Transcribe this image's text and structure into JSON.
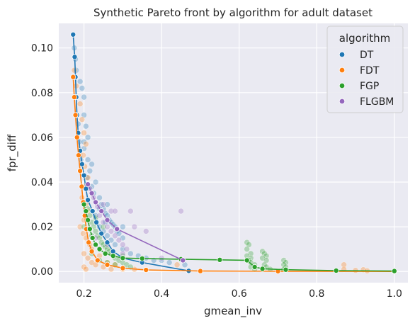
{
  "chart_data": {
    "type": "scatter",
    "title": "Synthetic Pareto front by algorithm for adult dataset",
    "xlabel": "gmean_inv",
    "ylabel": "fpr_diff",
    "xlim": [
      0.135,
      1.035
    ],
    "ylim": [
      -0.005,
      0.111
    ],
    "x_ticks": [
      0.2,
      0.4,
      0.6,
      0.8,
      1.0
    ],
    "x_tick_labels": [
      "0.2",
      "0.4",
      "0.6",
      "0.8",
      "1.0"
    ],
    "y_ticks": [
      0.0,
      0.02,
      0.04,
      0.06,
      0.08,
      0.1
    ],
    "y_tick_labels": [
      "0.00",
      "0.02",
      "0.04",
      "0.06",
      "0.08",
      "0.10"
    ],
    "grid": true,
    "background": "#eaeaf2",
    "legend": {
      "title": "algorithm",
      "placement": "top-right",
      "entries": [
        "DT",
        "FDT",
        "FGP",
        "FLGBM"
      ]
    },
    "series": [
      {
        "name": "DT",
        "color": "#1f77b4",
        "front": [
          [
            0.172,
            0.106
          ],
          [
            0.176,
            0.096
          ],
          [
            0.178,
            0.087
          ],
          [
            0.18,
            0.078
          ],
          [
            0.182,
            0.07
          ],
          [
            0.185,
            0.062
          ],
          [
            0.19,
            0.054
          ],
          [
            0.195,
            0.048
          ],
          [
            0.2,
            0.043
          ],
          [
            0.205,
            0.037
          ],
          [
            0.21,
            0.032
          ],
          [
            0.222,
            0.027
          ],
          [
            0.232,
            0.022
          ],
          [
            0.245,
            0.017
          ],
          [
            0.26,
            0.013
          ],
          [
            0.275,
            0.009
          ],
          [
            0.3,
            0.006
          ],
          [
            0.35,
            0.004
          ],
          [
            0.47,
            0.0003
          ]
        ],
        "cloud": [
          [
            0.175,
            0.1
          ],
          [
            0.178,
            0.095
          ],
          [
            0.18,
            0.09
          ],
          [
            0.19,
            0.085
          ],
          [
            0.195,
            0.082
          ],
          [
            0.2,
            0.078
          ],
          [
            0.2,
            0.07
          ],
          [
            0.205,
            0.065
          ],
          [
            0.21,
            0.06
          ],
          [
            0.2,
            0.055
          ],
          [
            0.21,
            0.05
          ],
          [
            0.22,
            0.048
          ],
          [
            0.215,
            0.045
          ],
          [
            0.23,
            0.04
          ],
          [
            0.225,
            0.035
          ],
          [
            0.24,
            0.033
          ],
          [
            0.245,
            0.03
          ],
          [
            0.25,
            0.028
          ],
          [
            0.255,
            0.026
          ],
          [
            0.26,
            0.025
          ],
          [
            0.265,
            0.023
          ],
          [
            0.27,
            0.022
          ],
          [
            0.275,
            0.021
          ],
          [
            0.28,
            0.02
          ],
          [
            0.285,
            0.018
          ],
          [
            0.29,
            0.017
          ],
          [
            0.3,
            0.015
          ],
          [
            0.23,
            0.025
          ],
          [
            0.24,
            0.02
          ],
          [
            0.25,
            0.018
          ],
          [
            0.26,
            0.016
          ],
          [
            0.27,
            0.014
          ],
          [
            0.28,
            0.012
          ],
          [
            0.3,
            0.01
          ],
          [
            0.32,
            0.008
          ],
          [
            0.34,
            0.007
          ],
          [
            0.36,
            0.006
          ],
          [
            0.38,
            0.005
          ],
          [
            0.4,
            0.005
          ],
          [
            0.42,
            0.004
          ],
          [
            0.3,
            0.02
          ],
          [
            0.26,
            0.03
          ],
          [
            0.22,
            0.038
          ],
          [
            0.185,
            0.066
          ],
          [
            0.188,
            0.058
          ],
          [
            0.192,
            0.05
          ],
          [
            0.2,
            0.058
          ],
          [
            0.208,
            0.042
          ],
          [
            0.24,
            0.028
          ],
          [
            0.255,
            0.022
          ],
          [
            0.35,
            0.005
          ],
          [
            0.46,
            0.003
          ]
        ]
      },
      {
        "name": "FDT",
        "color": "#ff7f0e",
        "front": [
          [
            0.172,
            0.087
          ],
          [
            0.175,
            0.078
          ],
          [
            0.178,
            0.07
          ],
          [
            0.182,
            0.06
          ],
          [
            0.186,
            0.052
          ],
          [
            0.19,
            0.045
          ],
          [
            0.194,
            0.038
          ],
          [
            0.198,
            0.031
          ],
          [
            0.202,
            0.025
          ],
          [
            0.206,
            0.019
          ],
          [
            0.212,
            0.013
          ],
          [
            0.22,
            0.009
          ],
          [
            0.235,
            0.005
          ],
          [
            0.26,
            0.003
          ],
          [
            0.3,
            0.0015
          ],
          [
            0.36,
            0.0007
          ],
          [
            0.5,
            0.0002
          ],
          [
            0.7,
            0.0001
          ],
          [
            1.0,
            0.0
          ]
        ],
        "cloud": [
          [
            0.175,
            0.09
          ],
          [
            0.18,
            0.083
          ],
          [
            0.19,
            0.075
          ],
          [
            0.195,
            0.068
          ],
          [
            0.2,
            0.062
          ],
          [
            0.205,
            0.057
          ],
          [
            0.198,
            0.052
          ],
          [
            0.202,
            0.047
          ],
          [
            0.21,
            0.042
          ],
          [
            0.2,
            0.038
          ],
          [
            0.195,
            0.033
          ],
          [
            0.205,
            0.03
          ],
          [
            0.21,
            0.027
          ],
          [
            0.2,
            0.023
          ],
          [
            0.19,
            0.02
          ],
          [
            0.198,
            0.017
          ],
          [
            0.205,
            0.015
          ],
          [
            0.215,
            0.012
          ],
          [
            0.22,
            0.01
          ],
          [
            0.2,
            0.008
          ],
          [
            0.21,
            0.006
          ],
          [
            0.22,
            0.004
          ],
          [
            0.23,
            0.003
          ],
          [
            0.2,
            0.002
          ],
          [
            0.205,
            0.001
          ],
          [
            0.25,
            0.002
          ],
          [
            0.27,
            0.001
          ],
          [
            0.3,
            0.001
          ],
          [
            0.33,
            0.001
          ],
          [
            0.44,
            0.003
          ],
          [
            0.87,
            0.003
          ],
          [
            0.87,
            0.001
          ],
          [
            0.9,
            0.0005
          ],
          [
            0.92,
            0.0008
          ],
          [
            0.93,
            0.0003
          ],
          [
            0.24,
            0.007
          ],
          [
            0.26,
            0.004
          ],
          [
            0.28,
            0.003
          ]
        ]
      },
      {
        "name": "FGP",
        "color": "#2ca02c",
        "front": [
          [
            0.2,
            0.03
          ],
          [
            0.205,
            0.027
          ],
          [
            0.21,
            0.023
          ],
          [
            0.215,
            0.019
          ],
          [
            0.222,
            0.015
          ],
          [
            0.23,
            0.012
          ],
          [
            0.24,
            0.01
          ],
          [
            0.255,
            0.008
          ],
          [
            0.275,
            0.007
          ],
          [
            0.3,
            0.006
          ],
          [
            0.35,
            0.0058
          ],
          [
            0.45,
            0.0055
          ],
          [
            0.55,
            0.0052
          ],
          [
            0.62,
            0.005
          ],
          [
            0.64,
            0.002
          ],
          [
            0.66,
            0.0012
          ],
          [
            0.72,
            0.0008
          ],
          [
            0.85,
            0.0004
          ],
          [
            1.0,
            0.0002
          ]
        ],
        "cloud": [
          [
            0.21,
            0.028
          ],
          [
            0.215,
            0.025
          ],
          [
            0.22,
            0.022
          ],
          [
            0.225,
            0.02
          ],
          [
            0.23,
            0.018
          ],
          [
            0.235,
            0.016
          ],
          [
            0.24,
            0.015
          ],
          [
            0.245,
            0.013
          ],
          [
            0.25,
            0.012
          ],
          [
            0.255,
            0.011
          ],
          [
            0.26,
            0.01
          ],
          [
            0.265,
            0.009
          ],
          [
            0.27,
            0.008
          ],
          [
            0.275,
            0.007
          ],
          [
            0.28,
            0.006
          ],
          [
            0.29,
            0.005
          ],
          [
            0.3,
            0.004
          ],
          [
            0.31,
            0.003
          ],
          [
            0.32,
            0.002
          ],
          [
            0.26,
            0.004
          ],
          [
            0.24,
            0.005
          ],
          [
            0.22,
            0.008
          ],
          [
            0.28,
            0.003
          ],
          [
            0.3,
            0.007
          ],
          [
            0.25,
            0.02
          ],
          [
            0.23,
            0.024
          ],
          [
            0.22,
            0.016
          ],
          [
            0.2,
            0.02
          ],
          [
            0.62,
            0.013
          ],
          [
            0.625,
            0.012
          ],
          [
            0.62,
            0.01
          ],
          [
            0.63,
            0.008
          ],
          [
            0.62,
            0.007
          ],
          [
            0.63,
            0.006
          ],
          [
            0.625,
            0.005
          ],
          [
            0.63,
            0.004
          ],
          [
            0.64,
            0.003
          ],
          [
            0.63,
            0.002
          ],
          [
            0.64,
            0.001
          ],
          [
            0.66,
            0.009
          ],
          [
            0.665,
            0.008
          ],
          [
            0.67,
            0.007
          ],
          [
            0.66,
            0.006
          ],
          [
            0.67,
            0.005
          ],
          [
            0.665,
            0.003
          ],
          [
            0.67,
            0.002
          ],
          [
            0.68,
            0.001
          ],
          [
            0.715,
            0.005
          ],
          [
            0.72,
            0.004
          ],
          [
            0.715,
            0.003
          ],
          [
            0.72,
            0.002
          ],
          [
            0.715,
            0.001
          ]
        ]
      },
      {
        "name": "FLGBM",
        "color": "#9467bd",
        "front": [
          [
            0.21,
            0.039
          ],
          [
            0.22,
            0.035
          ],
          [
            0.23,
            0.031
          ],
          [
            0.245,
            0.027
          ],
          [
            0.26,
            0.023
          ],
          [
            0.285,
            0.019
          ],
          [
            0.455,
            0.005
          ]
        ],
        "cloud": [
          [
            0.215,
            0.037
          ],
          [
            0.225,
            0.033
          ],
          [
            0.235,
            0.029
          ],
          [
            0.24,
            0.025
          ],
          [
            0.25,
            0.022
          ],
          [
            0.26,
            0.02
          ],
          [
            0.27,
            0.018
          ],
          [
            0.28,
            0.016
          ],
          [
            0.29,
            0.014
          ],
          [
            0.3,
            0.012
          ],
          [
            0.31,
            0.01
          ],
          [
            0.27,
            0.027
          ],
          [
            0.28,
            0.027
          ],
          [
            0.32,
            0.027
          ],
          [
            0.45,
            0.027
          ],
          [
            0.33,
            0.02
          ],
          [
            0.36,
            0.018
          ],
          [
            0.25,
            0.03
          ],
          [
            0.23,
            0.015
          ],
          [
            0.26,
            0.012
          ],
          [
            0.3,
            0.008
          ],
          [
            0.35,
            0.006
          ],
          [
            0.4,
            0.006
          ]
        ]
      }
    ]
  }
}
